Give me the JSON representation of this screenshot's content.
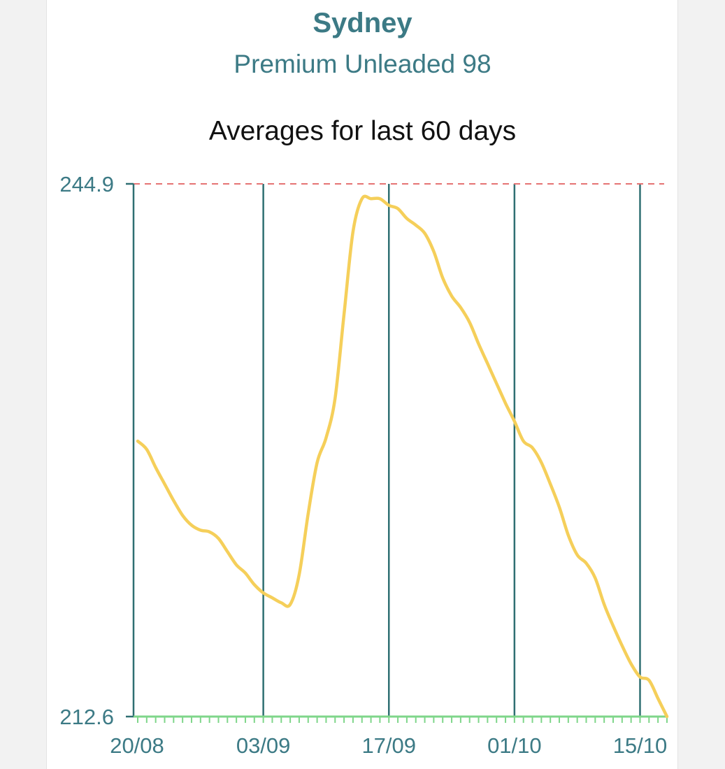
{
  "header": {
    "city": "Sydney",
    "fuel_type": "Premium Unleaded 98"
  },
  "chart_data": {
    "type": "line",
    "title": "Averages for last 60 days",
    "series": [
      {
        "color": "#f5cf5a",
        "x": [
          "20/08",
          "21/08",
          "22/08",
          "23/08",
          "24/08",
          "25/08",
          "26/08",
          "27/08",
          "28/08",
          "29/08",
          "30/08",
          "31/08",
          "01/09",
          "02/09",
          "03/09",
          "04/09",
          "05/09",
          "06/09",
          "07/09",
          "08/09",
          "09/09",
          "10/09",
          "11/09",
          "12/09",
          "13/09",
          "14/09",
          "15/09",
          "16/09",
          "17/09",
          "18/09",
          "19/09",
          "20/09",
          "21/09",
          "22/09",
          "23/09",
          "24/09",
          "25/09",
          "26/09",
          "27/09",
          "28/09",
          "29/09",
          "30/09",
          "01/10",
          "02/10",
          "03/10",
          "04/10",
          "05/10",
          "06/10",
          "07/10",
          "08/10",
          "09/10",
          "10/10",
          "11/10",
          "12/10",
          "13/10",
          "14/10",
          "15/10",
          "16/10",
          "17/10",
          "18/10"
        ],
        "values": [
          229.3,
          228.8,
          227.7,
          226.7,
          225.7,
          224.8,
          224.2,
          223.9,
          223.8,
          223.4,
          222.6,
          221.8,
          221.3,
          220.6,
          220.1,
          219.8,
          219.5,
          219.4,
          221.2,
          224.9,
          228.0,
          229.5,
          231.9,
          237.0,
          242.0,
          244.0,
          244.0,
          244.0,
          243.6,
          243.4,
          242.8,
          242.4,
          241.9,
          240.8,
          239.2,
          238.1,
          237.4,
          236.5,
          235.2,
          234.0,
          232.8,
          231.6,
          230.5,
          229.3,
          228.9,
          228.0,
          226.7,
          225.3,
          223.6,
          222.4,
          221.9,
          221.0,
          219.4,
          218.1,
          216.9,
          215.8,
          215.0,
          214.8,
          213.7,
          212.6
        ]
      }
    ],
    "ylim": [
      212.6,
      244.9
    ],
    "y_ticks": [
      "244.9",
      "212.6"
    ],
    "x_tick_labels": [
      "20/08",
      "03/09",
      "17/09",
      "01/10",
      "15/10"
    ],
    "max_reference_line": 244.9,
    "grid": "vertical"
  }
}
